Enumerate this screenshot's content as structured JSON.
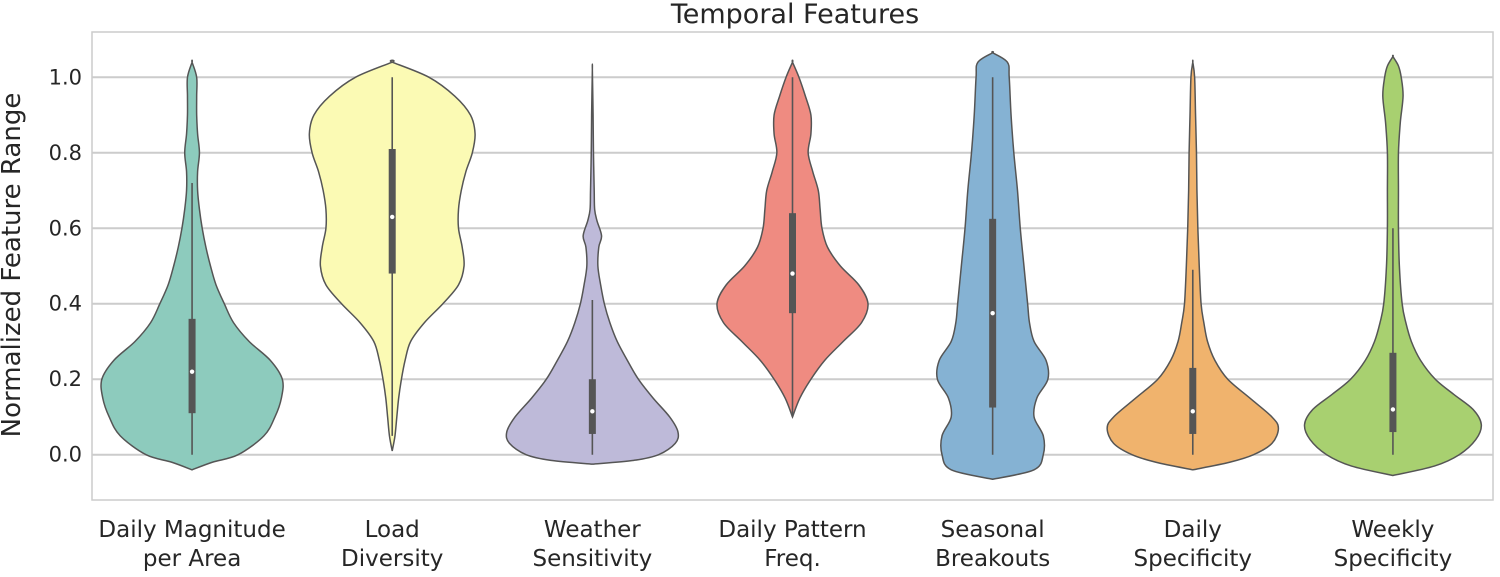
{
  "chart_data": {
    "type": "violin",
    "title": "Temporal Features",
    "xlabel": "",
    "ylabel": "Normalized Feature Range",
    "ylim": [
      -0.12,
      1.12
    ],
    "yticks": [
      "0.0",
      "0.2",
      "0.4",
      "0.6",
      "0.8",
      "1.0"
    ],
    "grid": "horizontal",
    "legend": "none",
    "categories": [
      {
        "label_lines": [
          "Daily Magnitude",
          "per Area"
        ],
        "color": "#8dcbbd",
        "y_min": -0.04,
        "y_max": 1.04,
        "whisker_low": 0.0,
        "whisker_high": 0.72,
        "q1": 0.11,
        "median": 0.22,
        "q3": 0.36,
        "profile": [
          [
            -0.04,
            0.0
          ],
          [
            -0.02,
            0.22
          ],
          [
            0.0,
            0.5
          ],
          [
            0.05,
            0.78
          ],
          [
            0.1,
            0.9
          ],
          [
            0.15,
            0.97
          ],
          [
            0.2,
            0.98
          ],
          [
            0.25,
            0.85
          ],
          [
            0.3,
            0.62
          ],
          [
            0.35,
            0.45
          ],
          [
            0.4,
            0.35
          ],
          [
            0.45,
            0.26
          ],
          [
            0.5,
            0.2
          ],
          [
            0.55,
            0.15
          ],
          [
            0.6,
            0.11
          ],
          [
            0.65,
            0.08
          ],
          [
            0.7,
            0.06
          ],
          [
            0.75,
            0.06
          ],
          [
            0.8,
            0.08
          ],
          [
            0.85,
            0.06
          ],
          [
            0.9,
            0.05
          ],
          [
            0.95,
            0.05
          ],
          [
            1.0,
            0.05
          ],
          [
            1.04,
            0.0
          ]
        ]
      },
      {
        "label_lines": [
          "Load",
          "Diversity"
        ],
        "color": "#fbfab4",
        "y_min": 0.01,
        "y_max": 1.04,
        "whisker_low": 0.05,
        "whisker_high": 1.0,
        "q1": 0.48,
        "median": 0.63,
        "q3": 0.81,
        "profile": [
          [
            0.01,
            0.0
          ],
          [
            0.05,
            0.03
          ],
          [
            0.1,
            0.05
          ],
          [
            0.15,
            0.07
          ],
          [
            0.2,
            0.1
          ],
          [
            0.25,
            0.14
          ],
          [
            0.3,
            0.2
          ],
          [
            0.35,
            0.35
          ],
          [
            0.4,
            0.55
          ],
          [
            0.45,
            0.72
          ],
          [
            0.5,
            0.78
          ],
          [
            0.55,
            0.76
          ],
          [
            0.6,
            0.72
          ],
          [
            0.65,
            0.72
          ],
          [
            0.7,
            0.75
          ],
          [
            0.75,
            0.8
          ],
          [
            0.8,
            0.87
          ],
          [
            0.85,
            0.9
          ],
          [
            0.9,
            0.85
          ],
          [
            0.95,
            0.68
          ],
          [
            1.0,
            0.4
          ],
          [
            1.04,
            0.0
          ]
        ]
      },
      {
        "label_lines": [
          "Weather",
          "Sensitivity"
        ],
        "color": "#bebad9",
        "y_min": -0.025,
        "y_max": 1.02,
        "whisker_low": 0.0,
        "whisker_high": 0.41,
        "q1": 0.055,
        "median": 0.115,
        "q3": 0.2,
        "profile": [
          [
            -0.025,
            0.0
          ],
          [
            -0.015,
            0.45
          ],
          [
            0.0,
            0.72
          ],
          [
            0.03,
            0.9
          ],
          [
            0.06,
            0.93
          ],
          [
            0.1,
            0.84
          ],
          [
            0.15,
            0.66
          ],
          [
            0.2,
            0.5
          ],
          [
            0.25,
            0.38
          ],
          [
            0.3,
            0.27
          ],
          [
            0.35,
            0.19
          ],
          [
            0.4,
            0.13
          ],
          [
            0.45,
            0.09
          ],
          [
            0.5,
            0.06
          ],
          [
            0.55,
            0.07
          ],
          [
            0.58,
            0.1
          ],
          [
            0.62,
            0.05
          ],
          [
            0.65,
            0.025
          ],
          [
            0.7,
            0.02
          ],
          [
            0.8,
            0.012
          ],
          [
            0.9,
            0.008
          ],
          [
            1.02,
            0.0
          ]
        ]
      },
      {
        "label_lines": [
          "Daily Pattern",
          "Freq."
        ],
        "color": "#ef8b81",
        "y_min": 0.1,
        "y_max": 1.04,
        "whisker_low": 0.1,
        "whisker_high": 1.0,
        "q1": 0.375,
        "median": 0.48,
        "q3": 0.64,
        "profile": [
          [
            0.1,
            0.0
          ],
          [
            0.15,
            0.08
          ],
          [
            0.2,
            0.2
          ],
          [
            0.25,
            0.35
          ],
          [
            0.3,
            0.55
          ],
          [
            0.35,
            0.75
          ],
          [
            0.4,
            0.82
          ],
          [
            0.45,
            0.72
          ],
          [
            0.5,
            0.52
          ],
          [
            0.55,
            0.38
          ],
          [
            0.6,
            0.32
          ],
          [
            0.65,
            0.3
          ],
          [
            0.7,
            0.28
          ],
          [
            0.75,
            0.22
          ],
          [
            0.8,
            0.17
          ],
          [
            0.85,
            0.2
          ],
          [
            0.9,
            0.2
          ],
          [
            0.95,
            0.14
          ],
          [
            1.0,
            0.07
          ],
          [
            1.04,
            0.0
          ]
        ]
      },
      {
        "label_lines": [
          "Seasonal",
          "Breakouts"
        ],
        "color": "#85b2d3",
        "y_min": -0.065,
        "y_max": 1.065,
        "whisker_low": 0.0,
        "whisker_high": 1.0,
        "q1": 0.125,
        "median": 0.375,
        "q3": 0.625,
        "profile": [
          [
            -0.065,
            0.0
          ],
          [
            -0.04,
            0.45
          ],
          [
            0.0,
            0.55
          ],
          [
            0.05,
            0.55
          ],
          [
            0.1,
            0.45
          ],
          [
            0.15,
            0.48
          ],
          [
            0.2,
            0.6
          ],
          [
            0.25,
            0.58
          ],
          [
            0.3,
            0.45
          ],
          [
            0.35,
            0.4
          ],
          [
            0.4,
            0.38
          ],
          [
            0.5,
            0.34
          ],
          [
            0.6,
            0.3
          ],
          [
            0.7,
            0.27
          ],
          [
            0.8,
            0.23
          ],
          [
            0.9,
            0.2
          ],
          [
            1.0,
            0.18
          ],
          [
            1.04,
            0.16
          ],
          [
            1.065,
            0.0
          ]
        ]
      },
      {
        "label_lines": [
          "Daily",
          "Specificity"
        ],
        "color": "#f0b36d",
        "y_min": -0.04,
        "y_max": 1.04,
        "whisker_low": 0.0,
        "whisker_high": 0.49,
        "q1": 0.055,
        "median": 0.115,
        "q3": 0.23,
        "profile": [
          [
            -0.04,
            0.0
          ],
          [
            -0.02,
            0.4
          ],
          [
            0.0,
            0.66
          ],
          [
            0.03,
            0.86
          ],
          [
            0.07,
            0.93
          ],
          [
            0.1,
            0.86
          ],
          [
            0.15,
            0.62
          ],
          [
            0.2,
            0.38
          ],
          [
            0.25,
            0.24
          ],
          [
            0.3,
            0.16
          ],
          [
            0.35,
            0.12
          ],
          [
            0.4,
            0.09
          ],
          [
            0.5,
            0.07
          ],
          [
            0.6,
            0.055
          ],
          [
            0.7,
            0.045
          ],
          [
            0.8,
            0.04
          ],
          [
            0.9,
            0.03
          ],
          [
            1.0,
            0.02
          ],
          [
            1.04,
            0.0
          ]
        ]
      },
      {
        "label_lines": [
          "Weekly",
          "Specificity"
        ],
        "color": "#a8d070",
        "y_min": -0.055,
        "y_max": 1.055,
        "whisker_low": 0.0,
        "whisker_high": 0.6,
        "q1": 0.06,
        "median": 0.12,
        "q3": 0.27,
        "profile": [
          [
            -0.055,
            0.0
          ],
          [
            -0.03,
            0.45
          ],
          [
            0.0,
            0.72
          ],
          [
            0.04,
            0.9
          ],
          [
            0.08,
            0.96
          ],
          [
            0.12,
            0.87
          ],
          [
            0.16,
            0.66
          ],
          [
            0.2,
            0.46
          ],
          [
            0.25,
            0.3
          ],
          [
            0.3,
            0.2
          ],
          [
            0.35,
            0.14
          ],
          [
            0.4,
            0.1
          ],
          [
            0.5,
            0.07
          ],
          [
            0.6,
            0.06
          ],
          [
            0.7,
            0.06
          ],
          [
            0.8,
            0.06
          ],
          [
            0.88,
            0.08
          ],
          [
            0.95,
            0.11
          ],
          [
            1.0,
            0.09
          ],
          [
            1.03,
            0.06
          ],
          [
            1.055,
            0.0
          ]
        ]
      }
    ]
  }
}
